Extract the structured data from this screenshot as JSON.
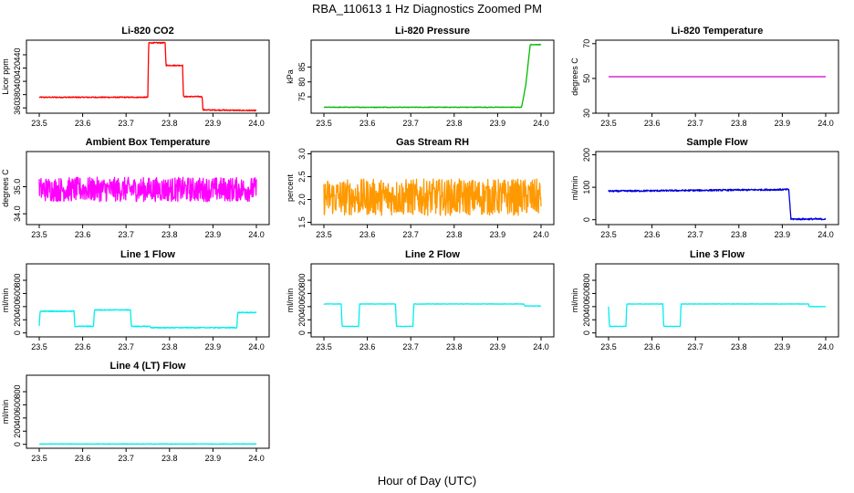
{
  "figure": {
    "title": "RBA_110613  1 Hz Diagnostics Zoomed PM",
    "xlabel": "Hour of Day (UTC)"
  },
  "chart_data": [
    {
      "type": "line",
      "title": "Li-820 CO2",
      "ylabel": "Licor ppm",
      "xlim": [
        23.5,
        24.0
      ],
      "ylim": [
        352,
        462
      ],
      "xticks": [
        "23.5",
        "23.6",
        "23.7",
        "23.8",
        "23.9",
        "24.0"
      ],
      "yticks": [
        360,
        380,
        400,
        420,
        440
      ],
      "color": "#ff0000",
      "series": [
        {
          "x": [
            23.5,
            23.75,
            23.752,
            23.79,
            23.792,
            23.83,
            23.832,
            23.875,
            23.877,
            24.0
          ],
          "y": [
            376,
            376,
            458,
            458,
            424,
            424,
            377,
            377,
            357,
            356
          ]
        }
      ],
      "noise": 0.8
    },
    {
      "type": "line",
      "title": "Li-820 Pressure",
      "ylabel": "kPa",
      "xlim": [
        23.5,
        24.0
      ],
      "ylim": [
        69.5,
        94
      ],
      "xticks": [
        "23.5",
        "23.6",
        "23.7",
        "23.8",
        "23.9",
        "24.0"
      ],
      "yticks": [
        75,
        80,
        85
      ],
      "color": "#00bb00",
      "series": [
        {
          "x": [
            23.5,
            23.955,
            23.965,
            23.975,
            24.0
          ],
          "y": [
            71.5,
            71.5,
            79,
            92.5,
            92.5
          ]
        }
      ],
      "noise": 0.1
    },
    {
      "type": "line",
      "title": "Li-820 Temperature",
      "ylabel": "degrees C",
      "xlim": [
        23.5,
        24.0
      ],
      "ylim": [
        30,
        72
      ],
      "xticks": [
        "23.5",
        "23.6",
        "23.7",
        "23.8",
        "23.9",
        "24.0"
      ],
      "yticks": [
        30,
        50,
        70
      ],
      "color": "#cc00cc",
      "series": [
        {
          "x": [
            23.5,
            24.0
          ],
          "y": [
            51,
            51
          ]
        }
      ],
      "noise": 0
    },
    {
      "type": "line",
      "title": "Ambient Box Temperature",
      "ylabel": "degrees C",
      "xlim": [
        23.5,
        24.0
      ],
      "ylim": [
        33.6,
        36.3
      ],
      "xticks": [
        "23.5",
        "23.6",
        "23.7",
        "23.8",
        "23.9",
        "24.0"
      ],
      "yticks": [
        34.0,
        35.0
      ],
      "ytick_labels": [
        "34.0",
        "35.0"
      ],
      "color": "#ff00ff",
      "series": [
        {
          "x": [
            23.5,
            24.0
          ],
          "y": [
            34.9,
            34.9
          ]
        }
      ],
      "noise": 0.45
    },
    {
      "type": "line",
      "title": "Gas Stream RH",
      "ylabel": "percent",
      "xlim": [
        23.5,
        24.0
      ],
      "ylim": [
        1.45,
        3.05
      ],
      "xticks": [
        "23.5",
        "23.6",
        "23.7",
        "23.8",
        "23.9",
        "24.0"
      ],
      "yticks": [
        1.5,
        2.0,
        2.5,
        3.0
      ],
      "ytick_labels": [
        "1.5",
        "2.0",
        "2.5",
        "3.0"
      ],
      "color": "#ff9900",
      "series": [
        {
          "x": [
            23.5,
            24.0
          ],
          "y": [
            2.05,
            2.05
          ]
        }
      ],
      "noise": 0.4
    },
    {
      "type": "line",
      "title": "Sample Flow",
      "ylabel": "ml/min",
      "xlim": [
        23.5,
        24.0
      ],
      "ylim": [
        -15,
        210
      ],
      "xticks": [
        "23.5",
        "23.6",
        "23.7",
        "23.8",
        "23.9",
        "24.0"
      ],
      "yticks": [
        0,
        100,
        200
      ],
      "color": "#0000dd",
      "series": [
        {
          "x": [
            23.5,
            23.915,
            23.92,
            24.0
          ],
          "y": [
            88,
            93,
            2,
            2
          ]
        }
      ],
      "noise": 2.5
    },
    {
      "type": "line",
      "title": "Line 1 Flow",
      "ylabel": "ml/min",
      "xlim": [
        23.5,
        24.0
      ],
      "ylim": [
        -60,
        1050
      ],
      "xticks": [
        "23.5",
        "23.6",
        "23.7",
        "23.8",
        "23.9",
        "24.0"
      ],
      "yticks": [
        0,
        200,
        400,
        600,
        800
      ],
      "color": "#00eeee",
      "series": [
        {
          "x": [
            23.5,
            23.502,
            23.58,
            23.582,
            23.625,
            23.627,
            23.71,
            23.712,
            23.755,
            23.757,
            23.955,
            23.957,
            24.0
          ],
          "y": [
            100,
            330,
            330,
            100,
            100,
            350,
            350,
            100,
            100,
            80,
            80,
            310,
            310
          ]
        }
      ],
      "noise": 7
    },
    {
      "type": "line",
      "title": "Line 2 Flow",
      "ylabel": "ml/min",
      "xlim": [
        23.5,
        24.0
      ],
      "ylim": [
        -60,
        1050
      ],
      "xticks": [
        "23.5",
        "23.6",
        "23.7",
        "23.8",
        "23.9",
        "24.0"
      ],
      "yticks": [
        0,
        200,
        400,
        600,
        800
      ],
      "color": "#00eeee",
      "series": [
        {
          "x": [
            23.5,
            23.54,
            23.542,
            23.58,
            23.582,
            23.665,
            23.667,
            23.705,
            23.707,
            23.96,
            23.962,
            24.0
          ],
          "y": [
            440,
            440,
            100,
            100,
            440,
            440,
            100,
            100,
            440,
            440,
            410,
            410
          ]
        }
      ],
      "noise": 3
    },
    {
      "type": "line",
      "title": "Line 3 Flow",
      "ylabel": "ml/min",
      "xlim": [
        23.5,
        24.0
      ],
      "ylim": [
        -60,
        1050
      ],
      "xticks": [
        "23.5",
        "23.6",
        "23.7",
        "23.8",
        "23.9",
        "24.0"
      ],
      "yticks": [
        0,
        200,
        400,
        600,
        800
      ],
      "color": "#00eeee",
      "series": [
        {
          "x": [
            23.5,
            23.502,
            23.54,
            23.542,
            23.625,
            23.627,
            23.665,
            23.667,
            23.96,
            23.962,
            24.0
          ],
          "y": [
            400,
            100,
            100,
            440,
            440,
            100,
            100,
            440,
            440,
            400,
            400
          ]
        }
      ],
      "noise": 3
    },
    {
      "type": "line",
      "title": "Line 4 (LT) Flow",
      "ylabel": "ml/min",
      "xlim": [
        23.5,
        24.0
      ],
      "ylim": [
        -60,
        1050
      ],
      "xticks": [
        "23.5",
        "23.6",
        "23.7",
        "23.8",
        "23.9",
        "24.0"
      ],
      "yticks": [
        0,
        200,
        400,
        600,
        800
      ],
      "color": "#00eeee",
      "series": [
        {
          "x": [
            23.5,
            24.0
          ],
          "y": [
            5,
            5
          ]
        }
      ],
      "noise": 4
    }
  ]
}
